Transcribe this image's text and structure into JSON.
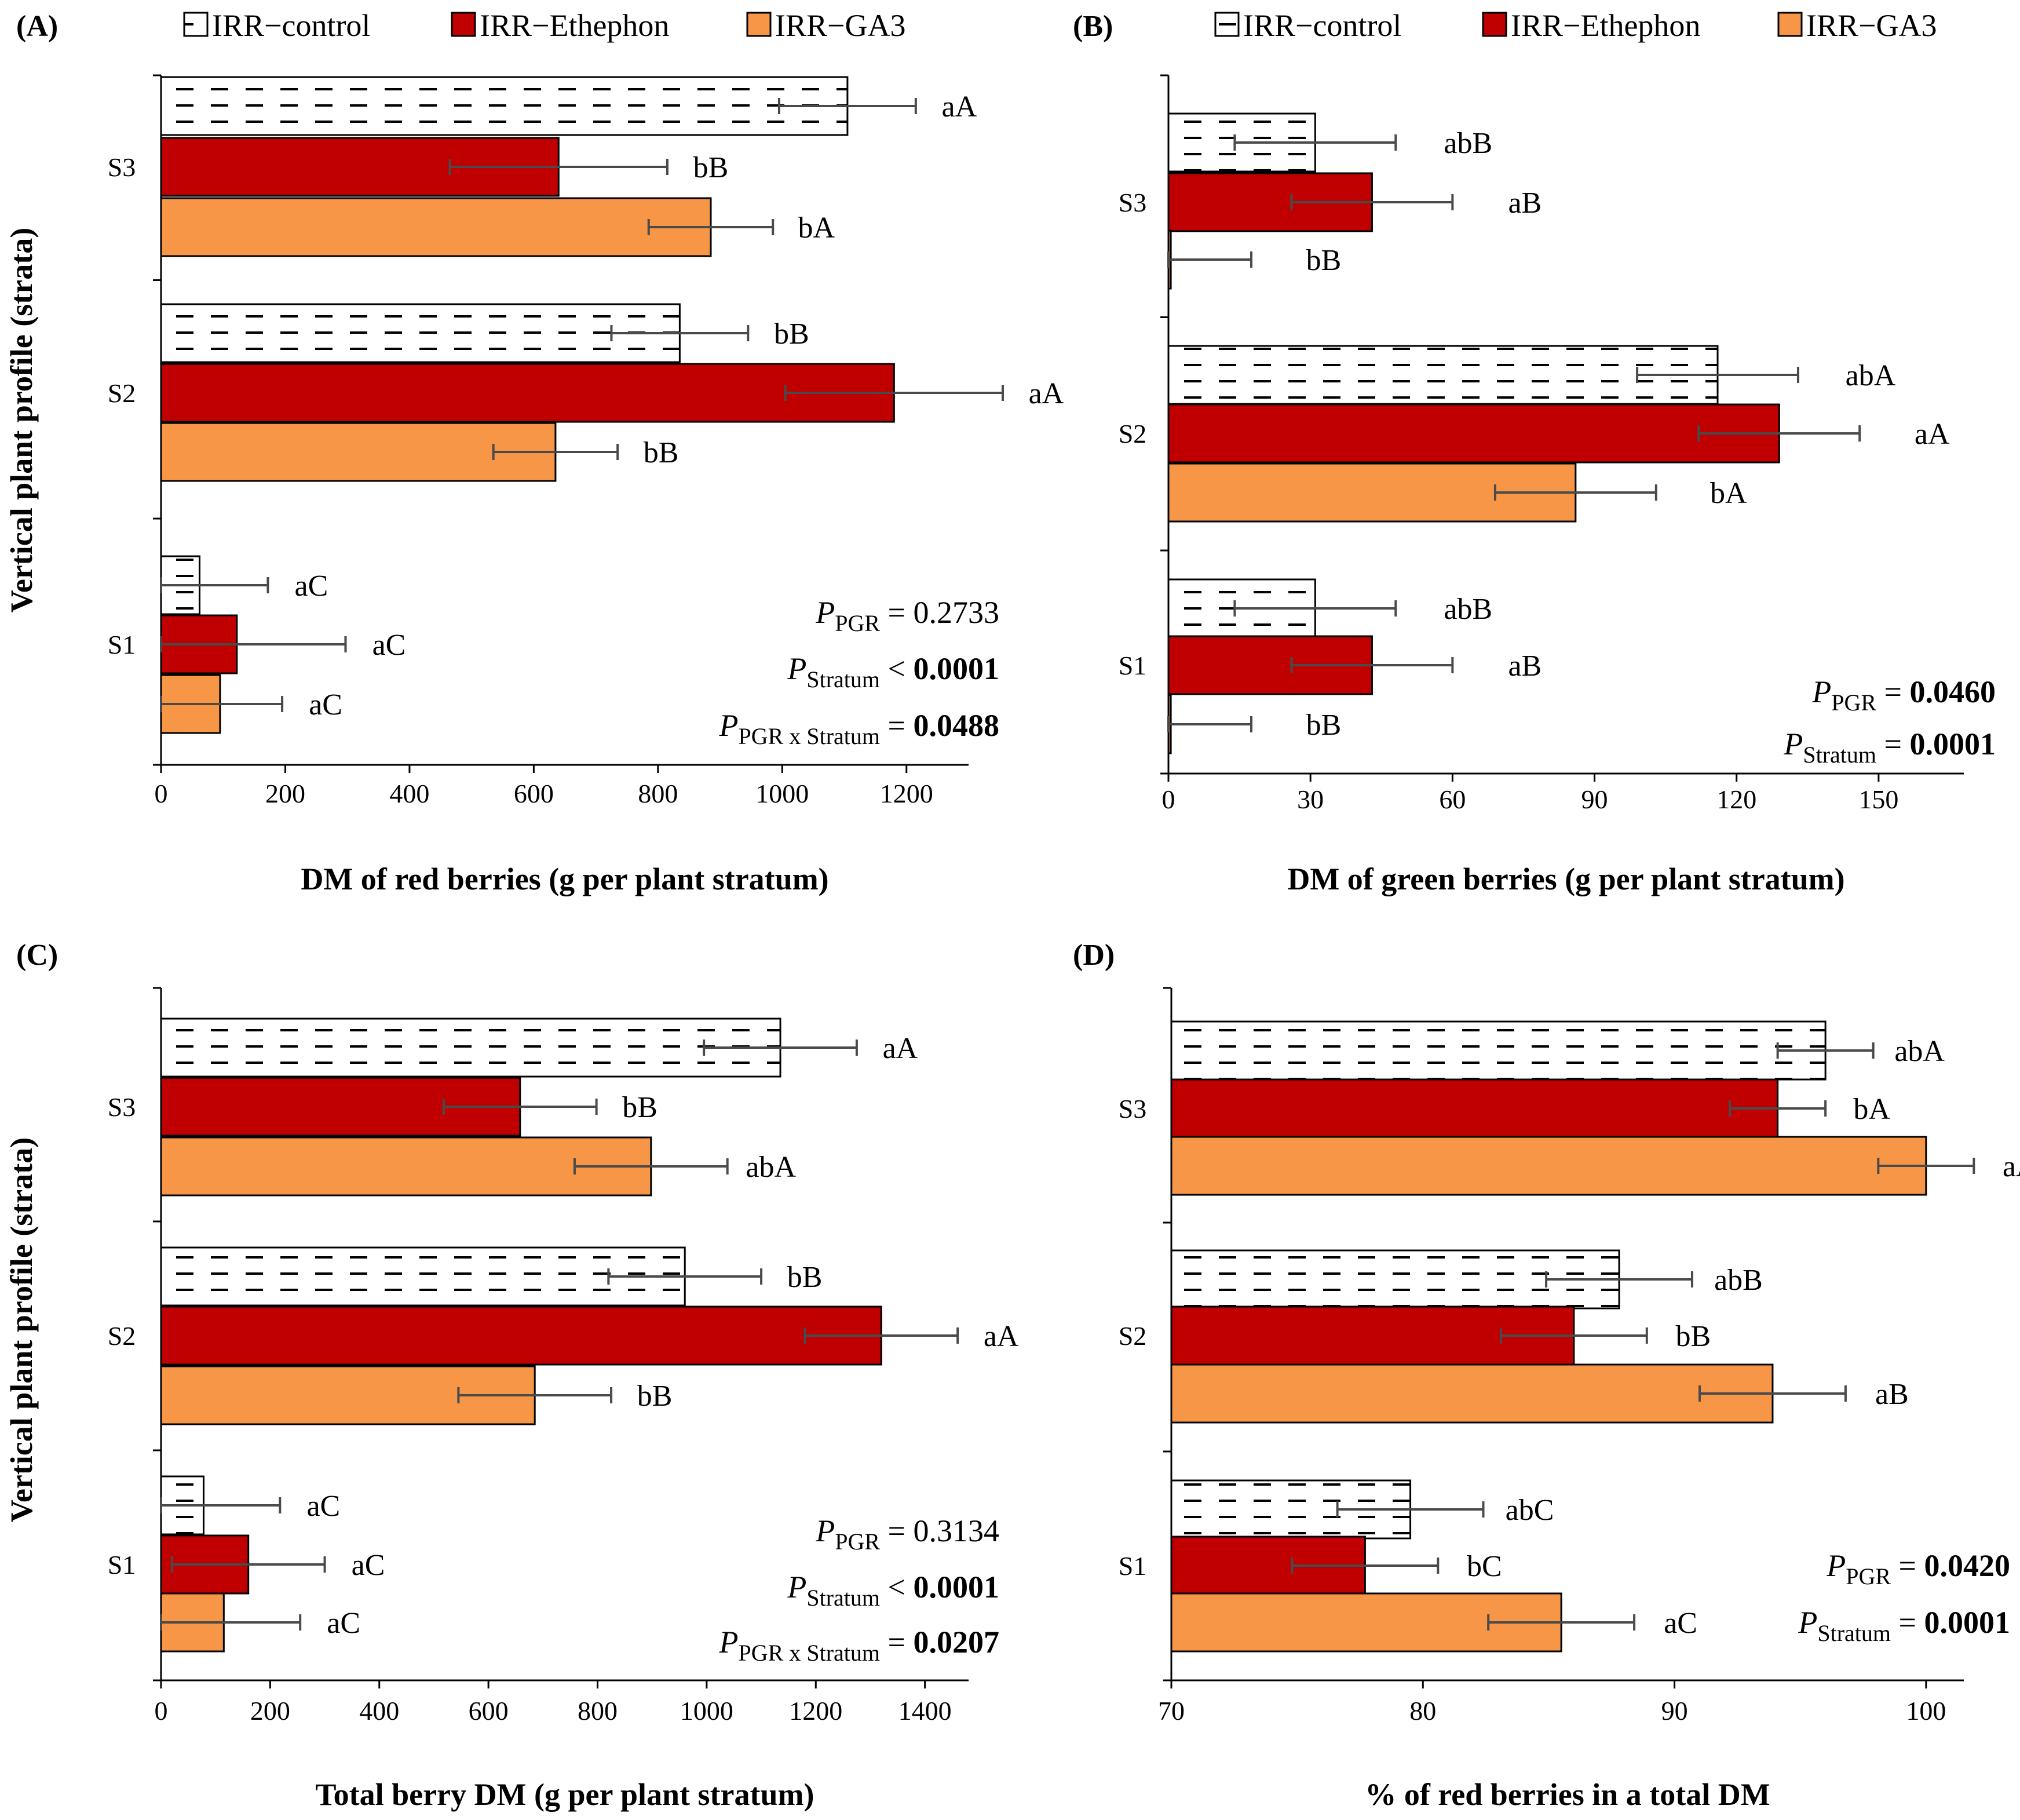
{
  "legend": {
    "entries": [
      {
        "key": "control",
        "label": "IRR−control",
        "pattern": "dashes"
      },
      {
        "key": "ethephon",
        "label": "IRR−Ethephon",
        "color": "#c00000"
      },
      {
        "key": "ga3",
        "label": "IRR−GA3",
        "color": "#f79646"
      }
    ]
  },
  "colors": {
    "ethephon": "#c00000",
    "ga3": "#f79646",
    "control_fill": "#ffffff",
    "bar_stroke": "#000000",
    "error_bar": "#4a4a4a"
  },
  "y_title": "Vertical plant profile (strata)",
  "chart_data": [
    {
      "panel": "(A)",
      "type": "bar",
      "orientation": "horizontal",
      "xlabel": "DM of red berries (g per plant stratum)",
      "xlim": [
        0,
        1300
      ],
      "xticks": [
        0,
        200,
        400,
        600,
        800,
        1000,
        1200
      ],
      "categories": [
        "S3",
        "S2",
        "S1"
      ],
      "series": [
        {
          "name": "IRR−control",
          "values": [
            1105,
            835,
            62
          ],
          "errors": [
            110,
            110,
            110
          ],
          "letters": [
            "aA",
            "bB",
            "aC"
          ]
        },
        {
          "name": "IRR−Ethephon",
          "values": [
            640,
            1180,
            122
          ],
          "errors": [
            175,
            175,
            175
          ],
          "letters": [
            "bB",
            "aA",
            "aC"
          ]
        },
        {
          "name": "IRR−GA3",
          "values": [
            885,
            635,
            95
          ],
          "errors": [
            100,
            100,
            100
          ],
          "letters": [
            "bA",
            "bB",
            "aC"
          ]
        }
      ],
      "stats": [
        {
          "label": "P",
          "sub": "PGR",
          "op": "=",
          "value": "0.2733",
          "bold": false
        },
        {
          "label": "P",
          "sub": "Stratum",
          "op": "<",
          "value": "0.0001",
          "bold": true
        },
        {
          "label": "P",
          "sub": "PGR x Stratum",
          "op": "=",
          "value": "0.0488",
          "bold": true
        }
      ]
    },
    {
      "panel": "(B)",
      "type": "bar",
      "orientation": "horizontal",
      "xlabel": "DM of green berries (g per plant stratum)",
      "xlim": [
        0,
        168
      ],
      "xticks": [
        0,
        30,
        60,
        90,
        120,
        150
      ],
      "categories": [
        "S3",
        "S2",
        "S1"
      ],
      "series": [
        {
          "name": "IRR−control",
          "values": [
            31,
            116,
            31
          ],
          "errors": [
            17,
            17,
            17
          ],
          "letters": [
            "abB",
            "abA",
            "abB"
          ]
        },
        {
          "name": "IRR−Ethephon",
          "values": [
            43,
            129,
            43
          ],
          "errors": [
            17,
            17,
            17
          ],
          "letters": [
            "aB",
            "aA",
            "aB"
          ]
        },
        {
          "name": "IRR−GA3",
          "values": [
            0.5,
            86,
            0.5
          ],
          "errors": [
            17,
            17,
            17
          ],
          "letters": [
            "bB",
            "bA",
            "bB"
          ]
        }
      ],
      "stats": [
        {
          "label": "P",
          "sub": "PGR",
          "op": "=",
          "value": "0.0460",
          "bold": true
        },
        {
          "label": "P",
          "sub": "Stratum",
          "op": "=",
          "value": "0.0001",
          "bold": true
        }
      ]
    },
    {
      "panel": "(C)",
      "type": "bar",
      "orientation": "horizontal",
      "xlabel": "Total berry DM (g per plant stratum)",
      "xlim": [
        0,
        1480
      ],
      "xticks": [
        0,
        200,
        400,
        600,
        800,
        1000,
        1200,
        1400
      ],
      "categories": [
        "S3",
        "S2",
        "S1"
      ],
      "series": [
        {
          "name": "IRR−control",
          "values": [
            1135,
            960,
            78
          ],
          "errors": [
            140,
            140,
            140
          ],
          "letters": [
            "aA",
            "bB",
            "aC"
          ]
        },
        {
          "name": "IRR−Ethephon",
          "values": [
            658,
            1320,
            160
          ],
          "errors": [
            140,
            140,
            140
          ],
          "letters": [
            "bB",
            "aA",
            "aC"
          ]
        },
        {
          "name": "IRR−GA3",
          "values": [
            898,
            685,
            115
          ],
          "errors": [
            140,
            140,
            140
          ],
          "letters": [
            "abA",
            "bB",
            "aC"
          ]
        }
      ],
      "stats": [
        {
          "label": "P",
          "sub": "PGR",
          "op": "=",
          "value": "0.3134",
          "bold": false
        },
        {
          "label": "P",
          "sub": "Stratum",
          "op": "<",
          "value": "0.0001",
          "bold": true
        },
        {
          "label": "P",
          "sub": "PGR x Stratum",
          "op": "=",
          "value": "0.0207",
          "bold": true
        }
      ]
    },
    {
      "panel": "(D)",
      "type": "bar",
      "orientation": "horizontal",
      "xlabel": "% of red berries in a total DM",
      "xlim": [
        70,
        101.5
      ],
      "xticks": [
        70,
        80,
        90,
        100
      ],
      "categories": [
        "S3",
        "S2",
        "S1"
      ],
      "series": [
        {
          "name": "IRR−control",
          "values": [
            96.0,
            87.8,
            79.5
          ],
          "errors": [
            1.9,
            2.9,
            2.9
          ],
          "letters": [
            "abA",
            "abB",
            "abC"
          ]
        },
        {
          "name": "IRR−Ethephon",
          "values": [
            94.1,
            86.0,
            77.7
          ],
          "errors": [
            1.9,
            2.9,
            2.9
          ],
          "letters": [
            "bA",
            "bB",
            "bC"
          ]
        },
        {
          "name": "IRR−GA3",
          "values": [
            100,
            93.9,
            85.5
          ],
          "errors": [
            1.9,
            2.9,
            2.9
          ],
          "letters": [
            "aA",
            "aB",
            "aC"
          ]
        }
      ],
      "stats": [
        {
          "label": "P",
          "sub": "PGR",
          "op": "=",
          "value": "0.0420",
          "bold": true
        },
        {
          "label": "P",
          "sub": "Stratum",
          "op": "=",
          "value": "0.0001",
          "bold": true
        }
      ]
    }
  ]
}
